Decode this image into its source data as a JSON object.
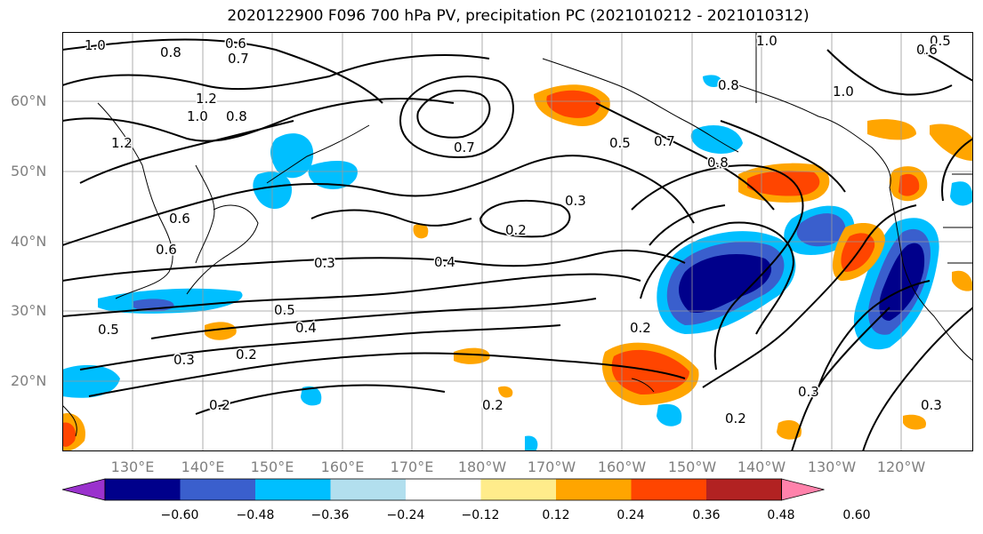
{
  "title": "2020122900 F096 700 hPa PV, precipitation PC (2021010212 - 2021010312)",
  "lat_labels": [
    "60°N",
    "50°N",
    "40°N",
    "30°N",
    "20°N"
  ],
  "lon_labels": [
    "130°E",
    "140°E",
    "150°E",
    "160°E",
    "170°E",
    "180°W",
    "170°W",
    "160°W",
    "150°W",
    "140°W",
    "130°W",
    "120°W"
  ],
  "contour_labels": [
    "1.0",
    "0.8",
    "0.6",
    "0.7",
    "1.2",
    "1.0",
    "0.8",
    "1.2",
    "0.6",
    "0.6",
    "0.7",
    "0.5",
    "0.7",
    "0.8",
    "0.8",
    "1.0",
    "0.5",
    "0.6",
    "1.0",
    "0.3",
    "0.2",
    "0.4",
    "0.3",
    "0.5",
    "0.4",
    "0.3",
    "0.2",
    "0.5",
    "0.2",
    "0.2",
    "0.2",
    "0.3",
    "0.3",
    "0.2"
  ],
  "colorbar": {
    "ticks": [
      "−0.60",
      "−0.48",
      "−0.36",
      "−0.24",
      "−0.12",
      "0.12",
      "0.24",
      "0.36",
      "0.48",
      "0.60"
    ],
    "colors": [
      "#9a32cd",
      "#00008b",
      "#3a5fcd",
      "#00bfff",
      "#b2dfee",
      "#ffffff",
      "#ffec8b",
      "#ffa500",
      "#ff4500",
      "#b22222",
      "#ff82ab"
    ]
  }
}
